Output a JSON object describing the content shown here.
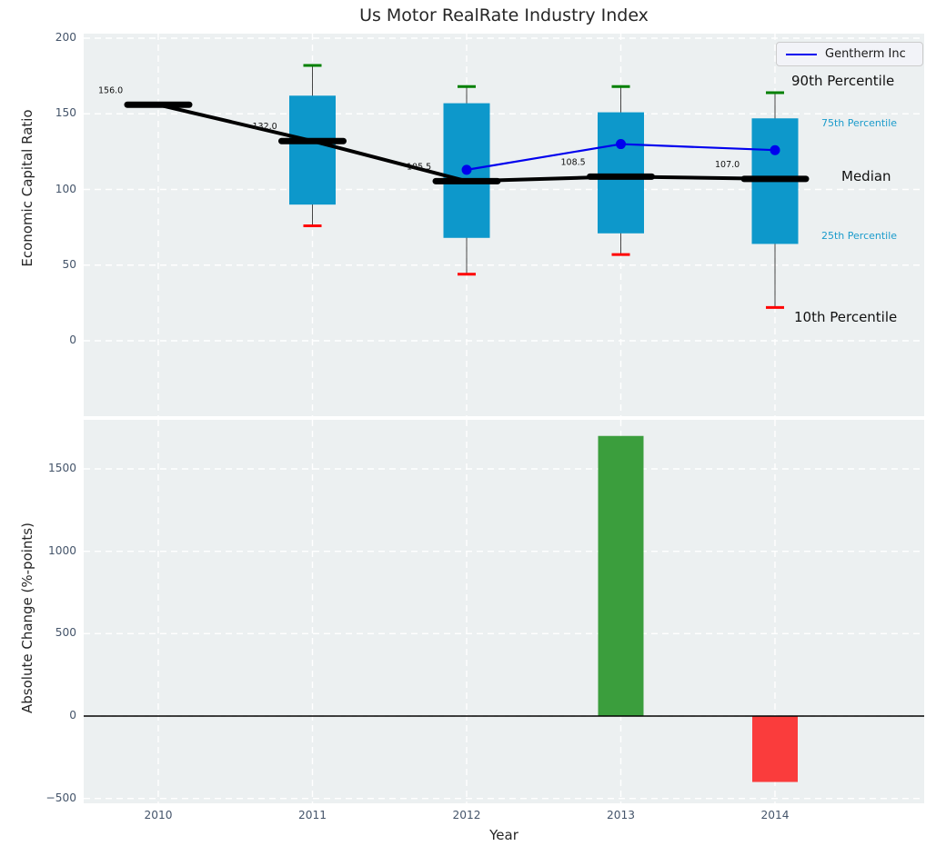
{
  "title": "Us Motor RealRate Industry Index",
  "legend": {
    "series_label": "Gentherm Inc",
    "line_color": "#0000ee"
  },
  "colors": {
    "panel_bg": "#ecf0f1",
    "grid": "#ffffff",
    "box_fill": "#0d98cb",
    "cap_high": "#008000",
    "cap_low": "#ff0000",
    "median": "#000000",
    "whisker": "#444444",
    "series_line": "#0000ee",
    "bar_positive": "#3b9e3d",
    "bar_negative": "#fa3c3c",
    "tick_text": "#44546a",
    "percentile_text_cyan": "#1b9bcb",
    "text": "#111111"
  },
  "chart_data": [
    {
      "type": "boxplot-with-line",
      "title": "Us Motor RealRate Industry Index",
      "ylabel": "Economic Capital Ratio",
      "categories": [
        "2010",
        "2011",
        "2012",
        "2013",
        "2014"
      ],
      "yticks": {
        "values": [
          200,
          150,
          100,
          50,
          0
        ],
        "labels": [
          "200",
          "150",
          "100",
          "50",
          "0"
        ]
      },
      "ylim": [
        -50,
        203
      ],
      "grid": "dashed-white",
      "boxes": [
        {
          "year": "2010",
          "median": 156.0,
          "median_label": "156.0",
          "q1": null,
          "q3": null,
          "p10": null,
          "p90": null
        },
        {
          "year": "2011",
          "median": 132.0,
          "median_label": "132.0",
          "q1": 90,
          "q3": 162,
          "p10": 76,
          "p90": 182
        },
        {
          "year": "2012",
          "median": 105.5,
          "median_label": "105.5",
          "q1": 68,
          "q3": 157,
          "p10": 44,
          "p90": 168
        },
        {
          "year": "2013",
          "median": 108.5,
          "median_label": "108.5",
          "q1": 71,
          "q3": 151,
          "p10": 57,
          "p90": 168
        },
        {
          "year": "2014",
          "median": 107.0,
          "median_label": "107.0",
          "q1": 64,
          "q3": 147,
          "p10": 22,
          "p90": 164
        }
      ],
      "series": [
        {
          "name": "Gentherm Inc",
          "x": [
            "2012",
            "2013",
            "2014"
          ],
          "values": [
            113,
            130,
            126
          ],
          "color": "#0000ee"
        }
      ],
      "percentile_labels": [
        {
          "text": "90th Percentile",
          "x": 870,
          "y": 80,
          "size": 15,
          "color": "#111111"
        },
        {
          "text": "75th Percentile",
          "x": 903,
          "y": 129,
          "size": 11,
          "color": "#1b9bcb"
        },
        {
          "text": "Median",
          "x": 925,
          "y": 185,
          "size": 15,
          "color": "#111111"
        },
        {
          "text": "25th Percentile",
          "x": 903,
          "y": 253,
          "size": 11,
          "color": "#1b9bcb"
        },
        {
          "text": "10th Percentile",
          "x": 873,
          "y": 340,
          "size": 15,
          "color": "#111111"
        }
      ],
      "legend_position": "upper right"
    },
    {
      "type": "bar",
      "ylabel": "Absolute Change (%-points)",
      "xlabel": "Year",
      "categories": [
        "2010",
        "2011",
        "2012",
        "2013",
        "2014"
      ],
      "values": [
        null,
        null,
        null,
        1700,
        -400
      ],
      "yticks": {
        "values": [
          1500,
          1000,
          500,
          0,
          -500
        ],
        "labels": [
          "1500",
          "1000",
          "500",
          "0",
          "−500"
        ]
      },
      "ylim": [
        -529,
        1797
      ],
      "zero_line": true,
      "grid": "dashed-white"
    }
  ]
}
